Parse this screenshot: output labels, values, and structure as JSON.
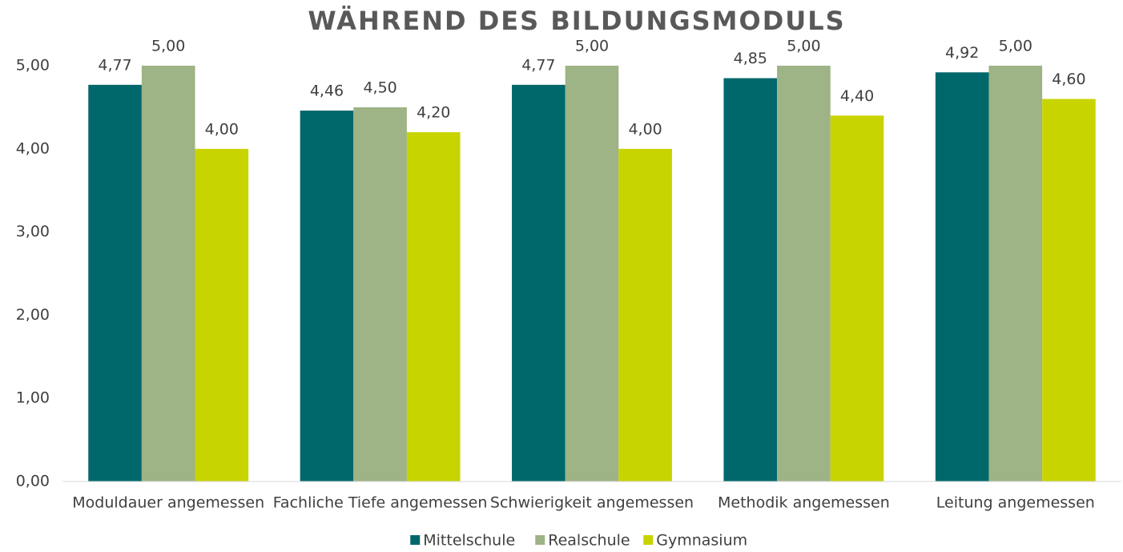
{
  "chart_data": {
    "type": "bar",
    "title": "WÄHREND DES BILDUNGSMODULS",
    "categories": [
      "Moduldauer angemessen",
      "Fachliche Tiefe angemessen",
      "Schwierigkeit angemessen",
      "Methodik angemessen",
      "Leitung angemessen"
    ],
    "series": [
      {
        "name": "Mittelschule",
        "color": "#00676a",
        "values": [
          4.77,
          4.46,
          4.77,
          4.85,
          4.92
        ],
        "value_labels": [
          "4,77",
          "4,46",
          "4,77",
          "4,85",
          "4,92"
        ]
      },
      {
        "name": "Realschule",
        "color": "#9eb386",
        "values": [
          5.0,
          4.5,
          5.0,
          5.0,
          5.0
        ],
        "value_labels": [
          "5,00",
          "4,50",
          "5,00",
          "5,00",
          "5,00"
        ]
      },
      {
        "name": "Gymnasium",
        "color": "#c8d400",
        "values": [
          4.0,
          4.2,
          4.0,
          4.4,
          4.6
        ],
        "value_labels": [
          "4,00",
          "4,20",
          "4,00",
          "4,40",
          "4,60"
        ]
      }
    ],
    "ylim": [
      0,
      5
    ],
    "yticks": [
      {
        "value": 0,
        "label": "0,00"
      },
      {
        "value": 1,
        "label": "1,00"
      },
      {
        "value": 2,
        "label": "2,00"
      },
      {
        "value": 3,
        "label": "3,00"
      },
      {
        "value": 4,
        "label": "4,00"
      },
      {
        "value": 5,
        "label": "5,00"
      }
    ],
    "grid": false,
    "legend": "bottom"
  }
}
